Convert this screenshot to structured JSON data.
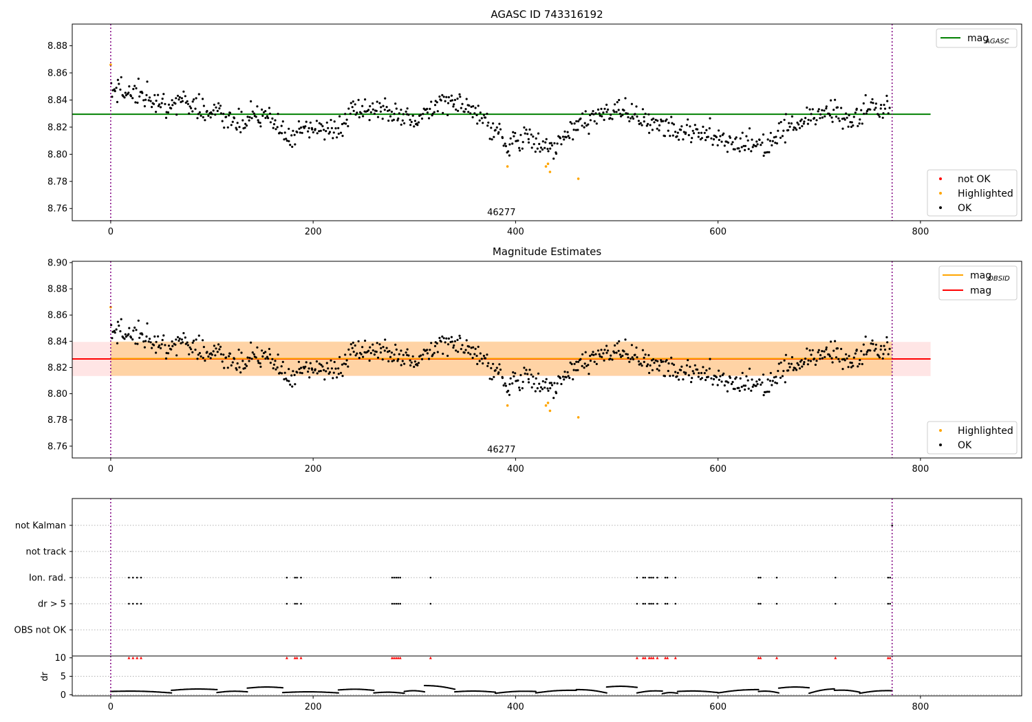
{
  "chart_data": [
    {
      "type": "scatter",
      "title": "AGASC ID 743316192",
      "xlim": [
        -38,
        900
      ],
      "ylim": [
        8.751,
        8.896
      ],
      "xticks": [
        0,
        200,
        400,
        600,
        800
      ],
      "yticks": [
        8.76,
        8.78,
        8.8,
        8.82,
        8.84,
        8.86,
        8.88
      ],
      "grid": false,
      "obsid_label": "46277",
      "obsid_label_x": 386,
      "vlines": [
        0,
        772
      ],
      "hline": {
        "value": 8.8295,
        "x": [
          -38,
          810
        ],
        "color": "#008000"
      },
      "legend_top": {
        "placement": "top-right",
        "entries": [
          {
            "label_main": "mag",
            "label_sub": "AGASC",
            "color": "#008000"
          }
        ]
      },
      "legend_bottom": {
        "placement": "bottom-right",
        "entries": [
          {
            "label": "not OK",
            "color": "#ff0000"
          },
          {
            "label": "Highlighted",
            "color": "#ffa500"
          },
          {
            "label": "OK",
            "color": "#000000"
          }
        ]
      },
      "highlighted": [
        [
          0,
          8.866
        ],
        [
          392,
          8.791
        ],
        [
          430,
          8.791
        ],
        [
          432,
          8.793
        ],
        [
          434,
          8.787
        ],
        [
          462,
          8.782
        ]
      ]
    },
    {
      "type": "scatter",
      "title": "Magnitude Estimates",
      "xlim": [
        -38,
        900
      ],
      "ylim": [
        8.751,
        8.901
      ],
      "xticks": [
        0,
        200,
        400,
        600,
        800
      ],
      "yticks": [
        8.76,
        8.78,
        8.8,
        8.82,
        8.84,
        8.86,
        8.88,
        8.9
      ],
      "grid": false,
      "obsid_label": "46277",
      "obsid_label_x": 386,
      "vlines": [
        0,
        772
      ],
      "mag": {
        "value": 8.8265,
        "band": [
          8.8135,
          8.8395
        ],
        "x": [
          -38,
          810
        ],
        "color": "#ff0000"
      },
      "mag_obsid": {
        "value": 8.8268,
        "band": [
          8.8137,
          8.8398
        ],
        "x": [
          0,
          772
        ],
        "color": "#ffa500"
      },
      "legend_top": {
        "placement": "top-right",
        "entries": [
          {
            "label_main": "mag",
            "label_sub": "OBSID",
            "color": "#ffa500"
          },
          {
            "label_main": "mag",
            "label_sub": "",
            "color": "#ff0000"
          }
        ]
      },
      "legend_bottom": {
        "placement": "bottom-right",
        "entries": [
          {
            "label": "Highlighted",
            "color": "#ffa500"
          },
          {
            "label": "OK",
            "color": "#000000"
          }
        ]
      },
      "highlighted": [
        [
          0,
          8.866
        ],
        [
          392,
          8.791
        ],
        [
          430,
          8.791
        ],
        [
          432,
          8.793
        ],
        [
          434,
          8.787
        ],
        [
          462,
          8.782
        ]
      ]
    },
    {
      "type": "scatter",
      "title": "",
      "xlim": [
        -38,
        900
      ],
      "categories": [
        "not Kalman",
        "not track",
        "Ion. rad.",
        "dr > 5",
        "OBS not OK"
      ],
      "flag_points": {
        "not Kalman": [
          772
        ],
        "not track": [],
        "Ion. rad.": [
          18,
          22,
          26,
          30,
          174,
          182,
          184,
          188,
          278,
          280,
          282,
          284,
          286,
          316,
          520,
          526,
          528,
          532,
          534,
          536,
          540,
          548,
          550,
          558,
          640,
          642,
          658,
          716,
          768,
          770
        ],
        "dr > 5": [
          18,
          22,
          26,
          30,
          174,
          182,
          184,
          188,
          278,
          280,
          282,
          284,
          286,
          316,
          520,
          526,
          528,
          532,
          534,
          536,
          540,
          548,
          550,
          558,
          640,
          642,
          658,
          716,
          768,
          770
        ],
        "OBS not OK": []
      }
    },
    {
      "type": "line",
      "title": "",
      "ylabel": "dr",
      "xlim": [
        -38,
        900
      ],
      "ylim": [
        -0.3,
        10.5
      ],
      "xticks": [
        0,
        200,
        400,
        600,
        800
      ],
      "yticks": [
        0,
        5,
        10
      ],
      "threshold": 10,
      "clipped_x": [
        18,
        22,
        26,
        30,
        174,
        182,
        184,
        188,
        278,
        280,
        282,
        284,
        286,
        316,
        520,
        526,
        528,
        532,
        534,
        536,
        540,
        548,
        550,
        558,
        640,
        642,
        658,
        716,
        768,
        770
      ],
      "segments": [
        {
          "x": [
            0,
            60
          ],
          "y": [
            0.9,
            0.5
          ]
        },
        {
          "x": [
            60,
            105
          ],
          "y": [
            1.2,
            1.4
          ]
        },
        {
          "x": [
            105,
            135
          ],
          "y": [
            0.6,
            0.8
          ]
        },
        {
          "x": [
            135,
            170
          ],
          "y": [
            1.8,
            1.9
          ]
        },
        {
          "x": [
            170,
            225
          ],
          "y": [
            0.6,
            0.5
          ]
        },
        {
          "x": [
            225,
            260
          ],
          "y": [
            1.3,
            1.2
          ]
        },
        {
          "x": [
            260,
            290
          ],
          "y": [
            0.5,
            0.4
          ]
        },
        {
          "x": [
            290,
            310
          ],
          "y": [
            0.9,
            0.8
          ]
        },
        {
          "x": [
            310,
            340
          ],
          "y": [
            2.5,
            1.5
          ]
        },
        {
          "x": [
            340,
            380
          ],
          "y": [
            0.8,
            0.7
          ]
        },
        {
          "x": [
            380,
            420
          ],
          "y": [
            0.4,
            0.9
          ]
        },
        {
          "x": [
            420,
            460
          ],
          "y": [
            0.5,
            1.2
          ]
        },
        {
          "x": [
            460,
            490
          ],
          "y": [
            1.4,
            0.5
          ]
        },
        {
          "x": [
            490,
            520
          ],
          "y": [
            2.1,
            2.0
          ]
        },
        {
          "x": [
            520,
            545
          ],
          "y": [
            0.5,
            1.0
          ]
        },
        {
          "x": [
            545,
            560
          ],
          "y": [
            0.3,
            0.4
          ]
        },
        {
          "x": [
            560,
            600
          ],
          "y": [
            0.9,
            0.6
          ]
        },
        {
          "x": [
            600,
            640
          ],
          "y": [
            0.5,
            1.4
          ]
        },
        {
          "x": [
            640,
            660
          ],
          "y": [
            0.9,
            0.5
          ]
        },
        {
          "x": [
            660,
            690
          ],
          "y": [
            1.8,
            1.9
          ]
        },
        {
          "x": [
            690,
            715
          ],
          "y": [
            0.4,
            1.6
          ]
        },
        {
          "x": [
            715,
            740
          ],
          "y": [
            1.2,
            0.7
          ]
        },
        {
          "x": [
            740,
            772
          ],
          "y": [
            0.4,
            1.1
          ]
        }
      ]
    }
  ]
}
